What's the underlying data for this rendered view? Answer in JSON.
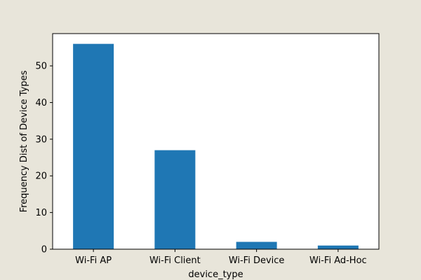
{
  "chart_data": {
    "type": "bar",
    "title": "",
    "xlabel": "device_type",
    "ylabel": "Frequency Dist of Device Types",
    "categories": [
      "Wi-Fi AP",
      "Wi-Fi Client",
      "Wi-Fi Device",
      "Wi-Fi Ad-Hoc"
    ],
    "values": [
      56,
      27,
      2,
      1
    ],
    "ylim": [
      0,
      58.8
    ],
    "yticks": [
      0,
      10,
      20,
      30,
      40,
      50
    ],
    "grid": false,
    "legend": "none",
    "colors": {
      "bar": "#1f77b4",
      "background": "#e8e5da",
      "plot_background": "#ffffff",
      "axis": "#000000"
    }
  }
}
